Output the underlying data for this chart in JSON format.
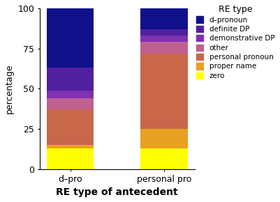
{
  "categories": [
    "d–pro",
    "personal pro"
  ],
  "segments": [
    "zero",
    "proper name",
    "personal pronoun",
    "other",
    "demonstrative DP",
    "definite DP",
    "d–pronoun"
  ],
  "colors": [
    "#ffff00",
    "#e8a020",
    "#c8674a",
    "#c06090",
    "#8030b0",
    "#5020a0",
    "#10108a"
  ],
  "values_dpro": [
    13,
    2,
    22,
    7,
    5,
    14,
    37
  ],
  "values_personal": [
    13,
    12,
    47,
    7,
    4,
    4,
    13
  ],
  "ylabel": "percentage",
  "xlabel": "RE type of antecedent",
  "legend_title": "RE type",
  "ylim": [
    0,
    100
  ],
  "yticks": [
    0,
    25,
    50,
    75,
    100
  ],
  "bar_width": 0.5,
  "figsize": [
    4.01,
    2.9
  ],
  "dpi": 100
}
